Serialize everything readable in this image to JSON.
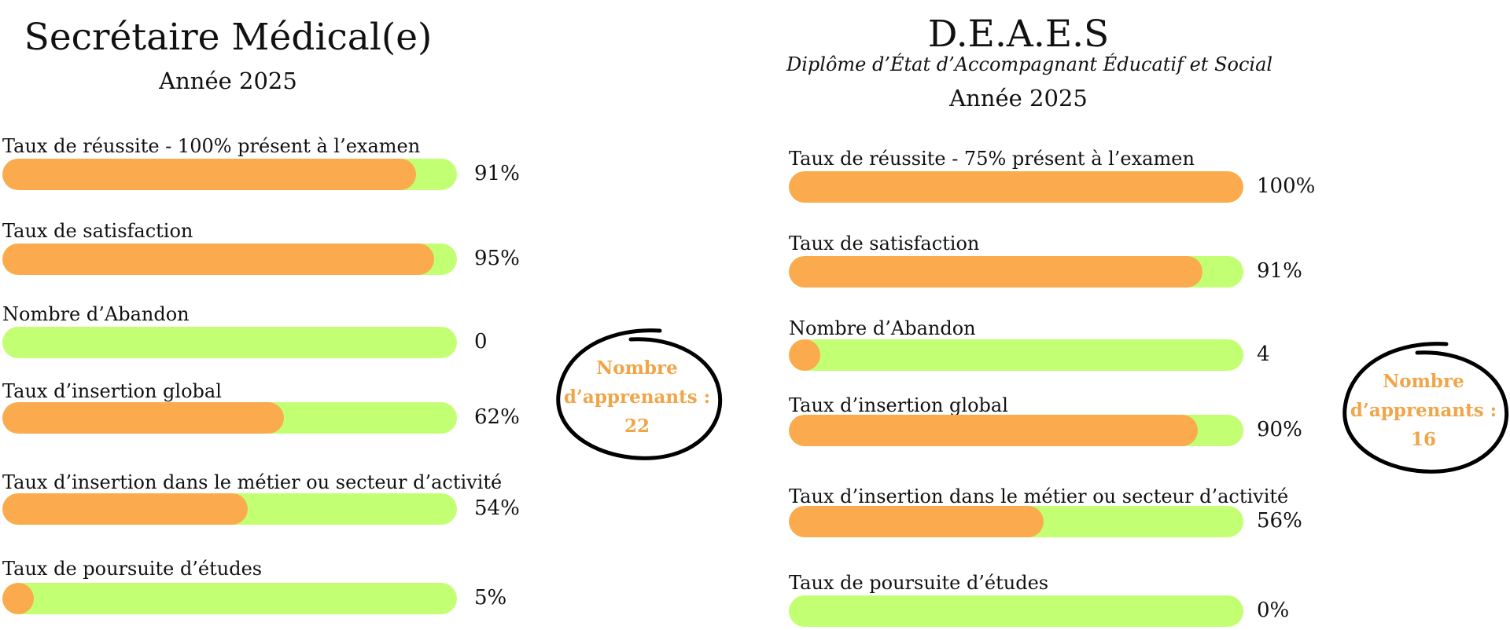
{
  "colors": {
    "filled": "#fbab4e",
    "track": "#c2ff73",
    "badge_text": "#f0a548",
    "text": "#111111"
  },
  "left": {
    "title": "Secrétaire Médical(e)",
    "year": "Année 2025",
    "badge": {
      "line1": "Nombre",
      "line2": "d’apprenants :",
      "count": "22"
    }
  },
  "right": {
    "title": "D.E.A.E.S",
    "subtitle": "Diplôme d’État d’Accompagnant Éducatif et Social",
    "year": "Année 2025",
    "badge": {
      "line1": "Nombre",
      "line2": "d’apprenants :",
      "count": "16"
    }
  },
  "chart_data": [
    {
      "type": "bar",
      "orientation": "horizontal",
      "title": "Secrétaire Médical(e) — Année 2025",
      "bars": [
        {
          "label": "Taux de réussite - 100% présent à l’examen",
          "display": "91%",
          "fill_fraction": 0.91
        },
        {
          "label": "Taux de satisfaction",
          "display": "95%",
          "fill_fraction": 0.95
        },
        {
          "label": "Nombre d’Abandon",
          "display": "0",
          "fill_fraction": 0
        },
        {
          "label": "Taux d’insertion global",
          "display": "62%",
          "fill_fraction": 0.62
        },
        {
          "label": "Taux d’insertion dans le métier ou secteur d’activité",
          "display": "54%",
          "fill_fraction": 0.54
        },
        {
          "label": "Taux de poursuite d’études",
          "display": "5%",
          "fill_fraction": 0.05
        }
      ]
    },
    {
      "type": "bar",
      "orientation": "horizontal",
      "title": "D.E.A.E.S — Année 2025",
      "bars": [
        {
          "label": "Taux de réussite - 75% présent à l’examen",
          "display": "100%",
          "fill_fraction": 1.0
        },
        {
          "label": "Taux de satisfaction",
          "display": "91%",
          "fill_fraction": 0.91
        },
        {
          "label": "Nombre d’Abandon",
          "display": "4",
          "fill_fraction": 0.07
        },
        {
          "label": "Taux d’insertion global",
          "display": "90%",
          "fill_fraction": 0.9
        },
        {
          "label": "Taux d’insertion dans le métier ou secteur d’activité",
          "display": "56%",
          "fill_fraction": 0.56
        },
        {
          "label": "Taux de poursuite d’études",
          "display": "0%",
          "fill_fraction": 0
        }
      ]
    }
  ]
}
